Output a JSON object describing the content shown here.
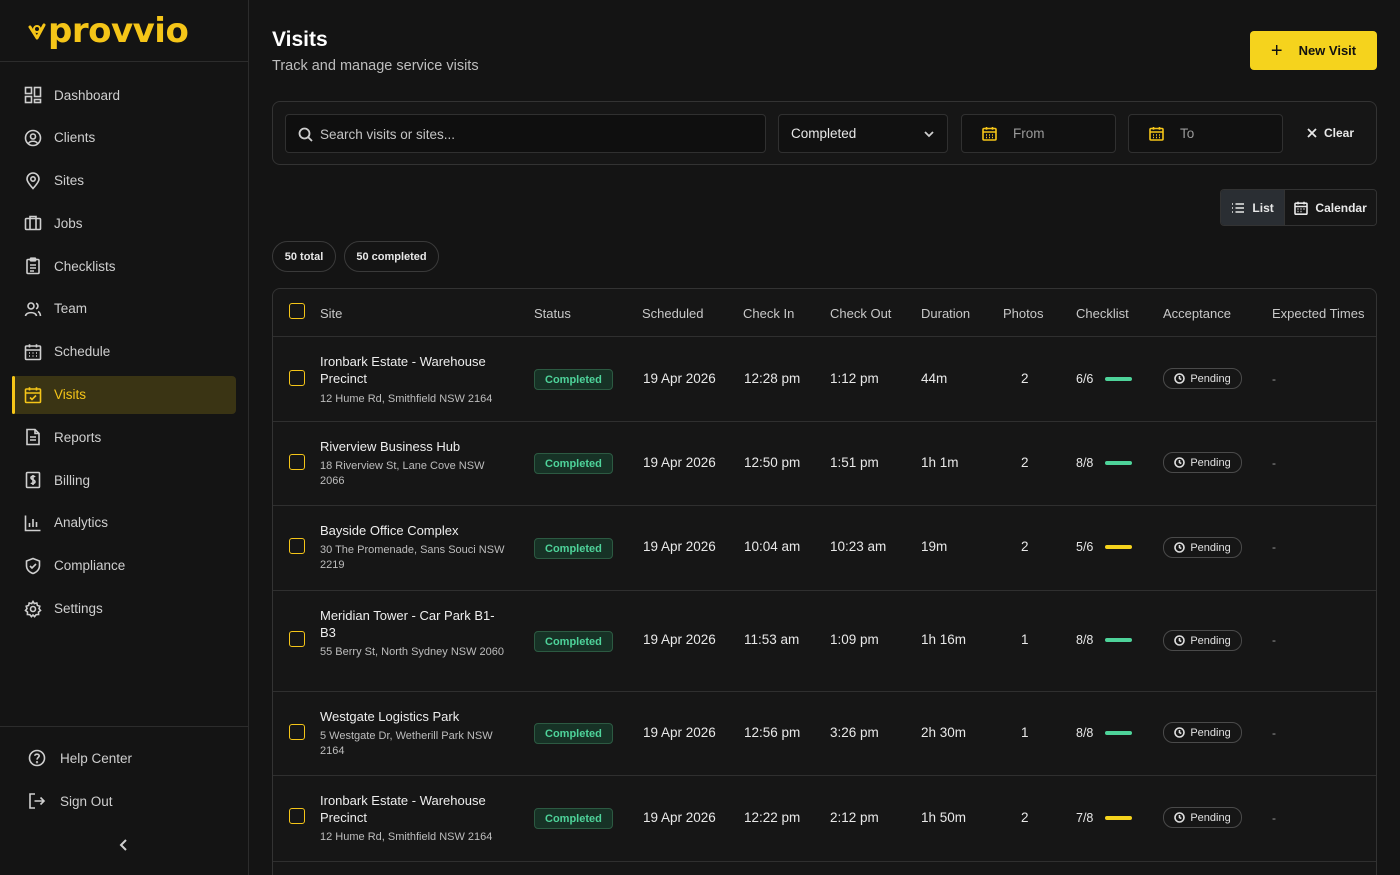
{
  "app": {
    "logo": "provvio"
  },
  "colors": {
    "accent": "#f5c518",
    "success": "#4ed39a",
    "warning": "#f5d31d",
    "background": "#141414"
  },
  "sidebar": {
    "items": [
      {
        "label": "Dashboard",
        "icon": "dashboard-icon"
      },
      {
        "label": "Clients",
        "icon": "user-circle-icon"
      },
      {
        "label": "Sites",
        "icon": "map-pin-icon"
      },
      {
        "label": "Jobs",
        "icon": "briefcase-icon"
      },
      {
        "label": "Checklists",
        "icon": "clipboard-icon"
      },
      {
        "label": "Team",
        "icon": "users-icon"
      },
      {
        "label": "Schedule",
        "icon": "calendar-icon"
      },
      {
        "label": "Visits",
        "icon": "calendar-check-icon",
        "active": true
      },
      {
        "label": "Reports",
        "icon": "file-text-icon"
      },
      {
        "label": "Billing",
        "icon": "dollar-icon"
      },
      {
        "label": "Analytics",
        "icon": "bar-chart-icon"
      },
      {
        "label": "Compliance",
        "icon": "shield-check-icon"
      },
      {
        "label": "Settings",
        "icon": "gear-icon"
      }
    ],
    "bottom": [
      {
        "label": "Help Center",
        "icon": "help-circle-icon"
      },
      {
        "label": "Sign Out",
        "icon": "sign-out-icon"
      }
    ]
  },
  "header": {
    "title": "Visits",
    "subtitle": "Track and manage service visits",
    "new_visit_label": "New Visit"
  },
  "filters": {
    "search_placeholder": "Search visits or sites...",
    "status_value": "Completed",
    "from_placeholder": "From",
    "to_placeholder": "To",
    "clear_label": "Clear"
  },
  "view_toggle": {
    "list_label": "List",
    "calendar_label": "Calendar",
    "selected": "List"
  },
  "summary": {
    "total": "50 total",
    "completed": "50 completed"
  },
  "table": {
    "columns": [
      "Site",
      "Status",
      "Scheduled",
      "Check In",
      "Check Out",
      "Duration",
      "Photos",
      "Checklist",
      "Acceptance",
      "Expected Times"
    ],
    "rows": [
      {
        "site": "Ironbark Estate - Warehouse Precinct",
        "address": "12 Hume Rd, Smithfield NSW 2164",
        "status": "Completed",
        "scheduled": "19 Apr 2026",
        "check_in": "12:28 pm",
        "check_out": "1:12 pm",
        "duration": "44m",
        "photos": "2",
        "checklist": "6/6",
        "checklist_done": 6,
        "checklist_total": 6,
        "acceptance": "Pending",
        "expected": "-"
      },
      {
        "site": "Riverview Business Hub",
        "address": "18 Riverview St, Lane Cove NSW 2066",
        "status": "Completed",
        "scheduled": "19 Apr 2026",
        "check_in": "12:50 pm",
        "check_out": "1:51 pm",
        "duration": "1h 1m",
        "photos": "2",
        "checklist": "8/8",
        "checklist_done": 8,
        "checklist_total": 8,
        "acceptance": "Pending",
        "expected": "-"
      },
      {
        "site": "Bayside Office Complex",
        "address": "30 The Promenade, Sans Souci NSW 2219",
        "status": "Completed",
        "scheduled": "19 Apr 2026",
        "check_in": "10:04 am",
        "check_out": "10:23 am",
        "duration": "19m",
        "photos": "2",
        "checklist": "5/6",
        "checklist_done": 5,
        "checklist_total": 6,
        "acceptance": "Pending",
        "expected": "-"
      },
      {
        "site": "Meridian Tower - Car Park B1-B3",
        "address": "55 Berry St, North Sydney NSW 2060",
        "status": "Completed",
        "scheduled": "19 Apr 2026",
        "check_in": "11:53 am",
        "check_out": "1:09 pm",
        "duration": "1h 16m",
        "photos": "1",
        "checklist": "8/8",
        "checklist_done": 8,
        "checklist_total": 8,
        "acceptance": "Pending",
        "expected": "-"
      },
      {
        "site": "Westgate Logistics Park",
        "address": "5 Westgate Dr, Wetherill Park NSW 2164",
        "status": "Completed",
        "scheduled": "19 Apr 2026",
        "check_in": "12:56 pm",
        "check_out": "3:26 pm",
        "duration": "2h 30m",
        "photos": "1",
        "checklist": "8/8",
        "checklist_done": 8,
        "checklist_total": 8,
        "acceptance": "Pending",
        "expected": "-"
      },
      {
        "site": "Ironbark Estate - Warehouse Precinct",
        "address": "12 Hume Rd, Smithfield NSW 2164",
        "status": "Completed",
        "scheduled": "19 Apr 2026",
        "check_in": "12:22 pm",
        "check_out": "2:12 pm",
        "duration": "1h 50m",
        "photos": "2",
        "checklist": "7/8",
        "checklist_done": 7,
        "checklist_total": 8,
        "acceptance": "Pending",
        "expected": "-"
      }
    ]
  }
}
